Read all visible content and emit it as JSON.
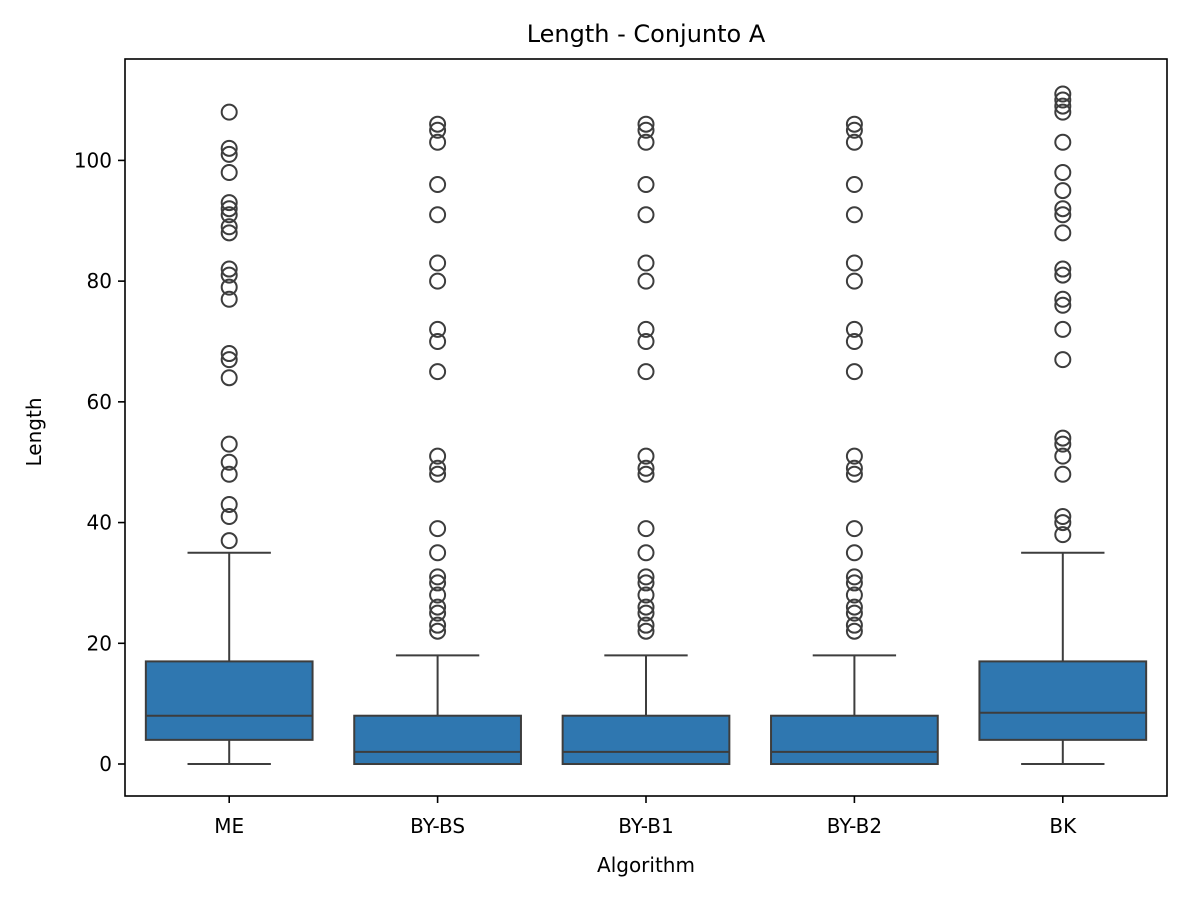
{
  "chart_data": {
    "type": "boxplot",
    "title": "Length - Conjunto A",
    "xlabel": "Algorithm",
    "ylabel": "Length",
    "ylim": [
      -5.3,
      116.8
    ],
    "yticks": [
      0,
      20,
      40,
      60,
      80,
      100
    ],
    "grid": false,
    "legend": "none",
    "box_color": "#2f77b0",
    "line_color": "#3d3d3d",
    "categories": [
      "ME",
      "BY-BS",
      "BY-B1",
      "BY-B2",
      "BK"
    ],
    "boxes": [
      {
        "name": "ME",
        "whisker_low": 0,
        "q1": 4,
        "median": 8,
        "q3": 17,
        "whisker_high": 35,
        "outliers": [
          37,
          41,
          43,
          48,
          50,
          53,
          64,
          67,
          68,
          77,
          79,
          81,
          82,
          88,
          89,
          91,
          92,
          93,
          98,
          101,
          102,
          108
        ]
      },
      {
        "name": "BY-BS",
        "whisker_low": 0,
        "q1": 0,
        "median": 2,
        "q3": 8,
        "whisker_high": 18,
        "outliers": [
          22,
          23,
          25,
          26,
          28,
          30,
          31,
          35,
          39,
          48,
          49,
          51,
          65,
          70,
          72,
          80,
          83,
          91,
          96,
          103,
          105,
          106
        ]
      },
      {
        "name": "BY-B1",
        "whisker_low": 0,
        "q1": 0,
        "median": 2,
        "q3": 8,
        "whisker_high": 18,
        "outliers": [
          22,
          23,
          25,
          26,
          28,
          30,
          31,
          35,
          39,
          48,
          49,
          51,
          65,
          70,
          72,
          80,
          83,
          91,
          96,
          103,
          105,
          106
        ]
      },
      {
        "name": "BY-B2",
        "whisker_low": 0,
        "q1": 0,
        "median": 2,
        "q3": 8,
        "whisker_high": 18,
        "outliers": [
          22,
          23,
          25,
          26,
          28,
          30,
          31,
          35,
          39,
          48,
          49,
          51,
          65,
          70,
          72,
          80,
          83,
          91,
          96,
          103,
          105,
          106
        ]
      },
      {
        "name": "BK",
        "whisker_low": 0,
        "q1": 4,
        "median": 8.5,
        "q3": 17,
        "whisker_high": 35,
        "outliers": [
          38,
          40,
          41,
          48,
          51,
          53,
          54,
          67,
          72,
          76,
          77,
          81,
          82,
          88,
          91,
          92,
          95,
          98,
          103,
          108,
          109,
          110,
          111
        ]
      }
    ]
  }
}
